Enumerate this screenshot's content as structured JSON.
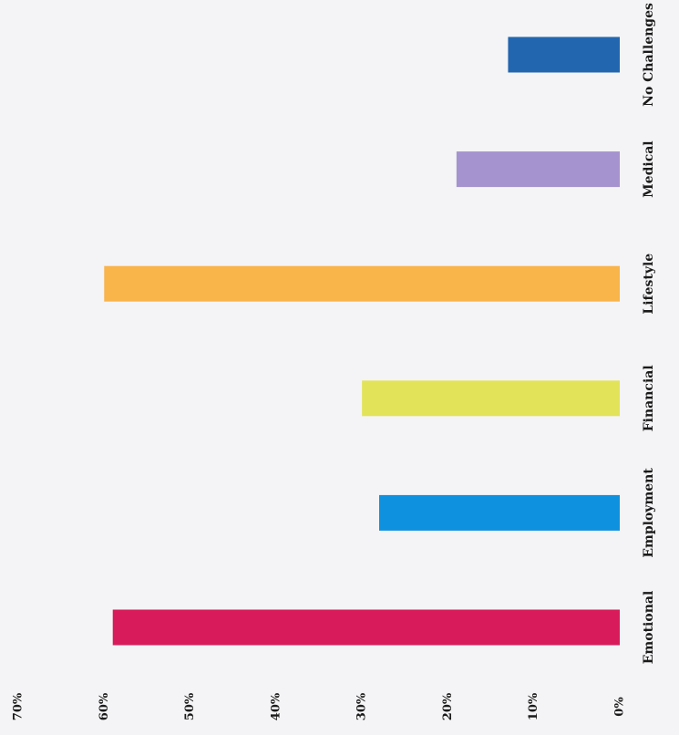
{
  "chart_data": {
    "type": "bar",
    "categories": [
      "Emotional",
      "Employment",
      "Financial",
      "Lifestyle",
      "Medical",
      "No Challenges"
    ],
    "values": [
      59,
      28,
      30,
      60,
      19,
      13
    ],
    "colors": [
      "#d81b5a",
      "#0e91de",
      "#e3e35a",
      "#f9b44a",
      "#a593cf",
      "#2266b0"
    ],
    "xlim": [
      0,
      70
    ],
    "xticks": [
      {
        "value": 0,
        "label": "0%"
      },
      {
        "value": 10,
        "label": "10%"
      },
      {
        "value": 20,
        "label": "20%"
      },
      {
        "value": 30,
        "label": "30%"
      },
      {
        "value": 40,
        "label": "40%"
      },
      {
        "value": 50,
        "label": "50%"
      },
      {
        "value": 60,
        "label": "60%"
      },
      {
        "value": 70,
        "label": "70%"
      }
    ]
  }
}
